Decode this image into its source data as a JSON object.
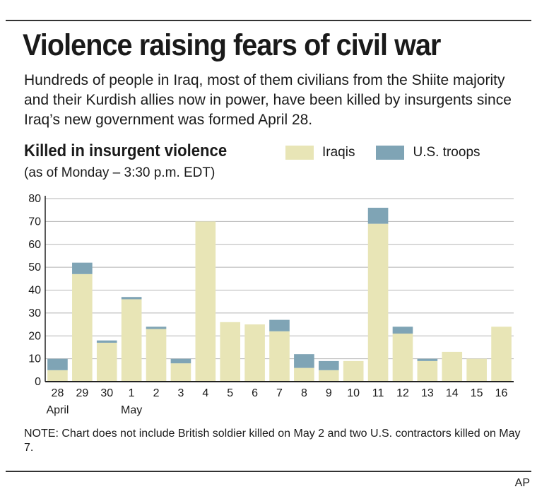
{
  "header": {
    "title": "Violence raising fears of civil war",
    "subtitle": "Hundreds of people in Iraq, most of them civilians from the Shiite majority and their Kurdish allies now in power, have been killed by insurgents since Iraq’s new government was formed April 28."
  },
  "legend": {
    "iraqis": "Iraqis",
    "us": "U.S. troops"
  },
  "footer": {
    "note": "NOTE: Chart does not include British soldier killed on May 2 and two U.S. contractors killed on May 7.",
    "credit": "AP"
  },
  "colors": {
    "iraqis": "#e8e5b6",
    "us": "#7fa4b5",
    "grid": "#b5b5b5",
    "axis": "#222222"
  },
  "chart_data": {
    "type": "bar",
    "stacked": true,
    "title": "Killed in insurgent violence",
    "subtitle": "(as of Monday – 3:30 p.m. EDT)",
    "categories": [
      "28",
      "29",
      "30",
      "1",
      "2",
      "3",
      "4",
      "5",
      "6",
      "7",
      "8",
      "9",
      "10",
      "11",
      "12",
      "13",
      "14",
      "15",
      "16"
    ],
    "month_labels": [
      {
        "index": 0,
        "label": "April"
      },
      {
        "index": 3,
        "label": "May"
      }
    ],
    "series": [
      {
        "name": "Iraqis",
        "values": [
          5,
          47,
          17,
          36,
          23,
          8,
          70,
          26,
          25,
          22,
          6,
          5,
          9,
          69,
          21,
          9,
          13,
          10,
          24
        ]
      },
      {
        "name": "U.S. troops",
        "values": [
          5,
          5,
          1,
          1,
          1,
          2,
          0,
          0,
          0,
          5,
          6,
          4,
          0,
          7,
          3,
          1,
          0,
          0,
          0
        ]
      }
    ],
    "ylim": [
      0,
      80
    ],
    "yticks": [
      0,
      10,
      20,
      30,
      40,
      50,
      60,
      70,
      80
    ],
    "grid": true
  }
}
